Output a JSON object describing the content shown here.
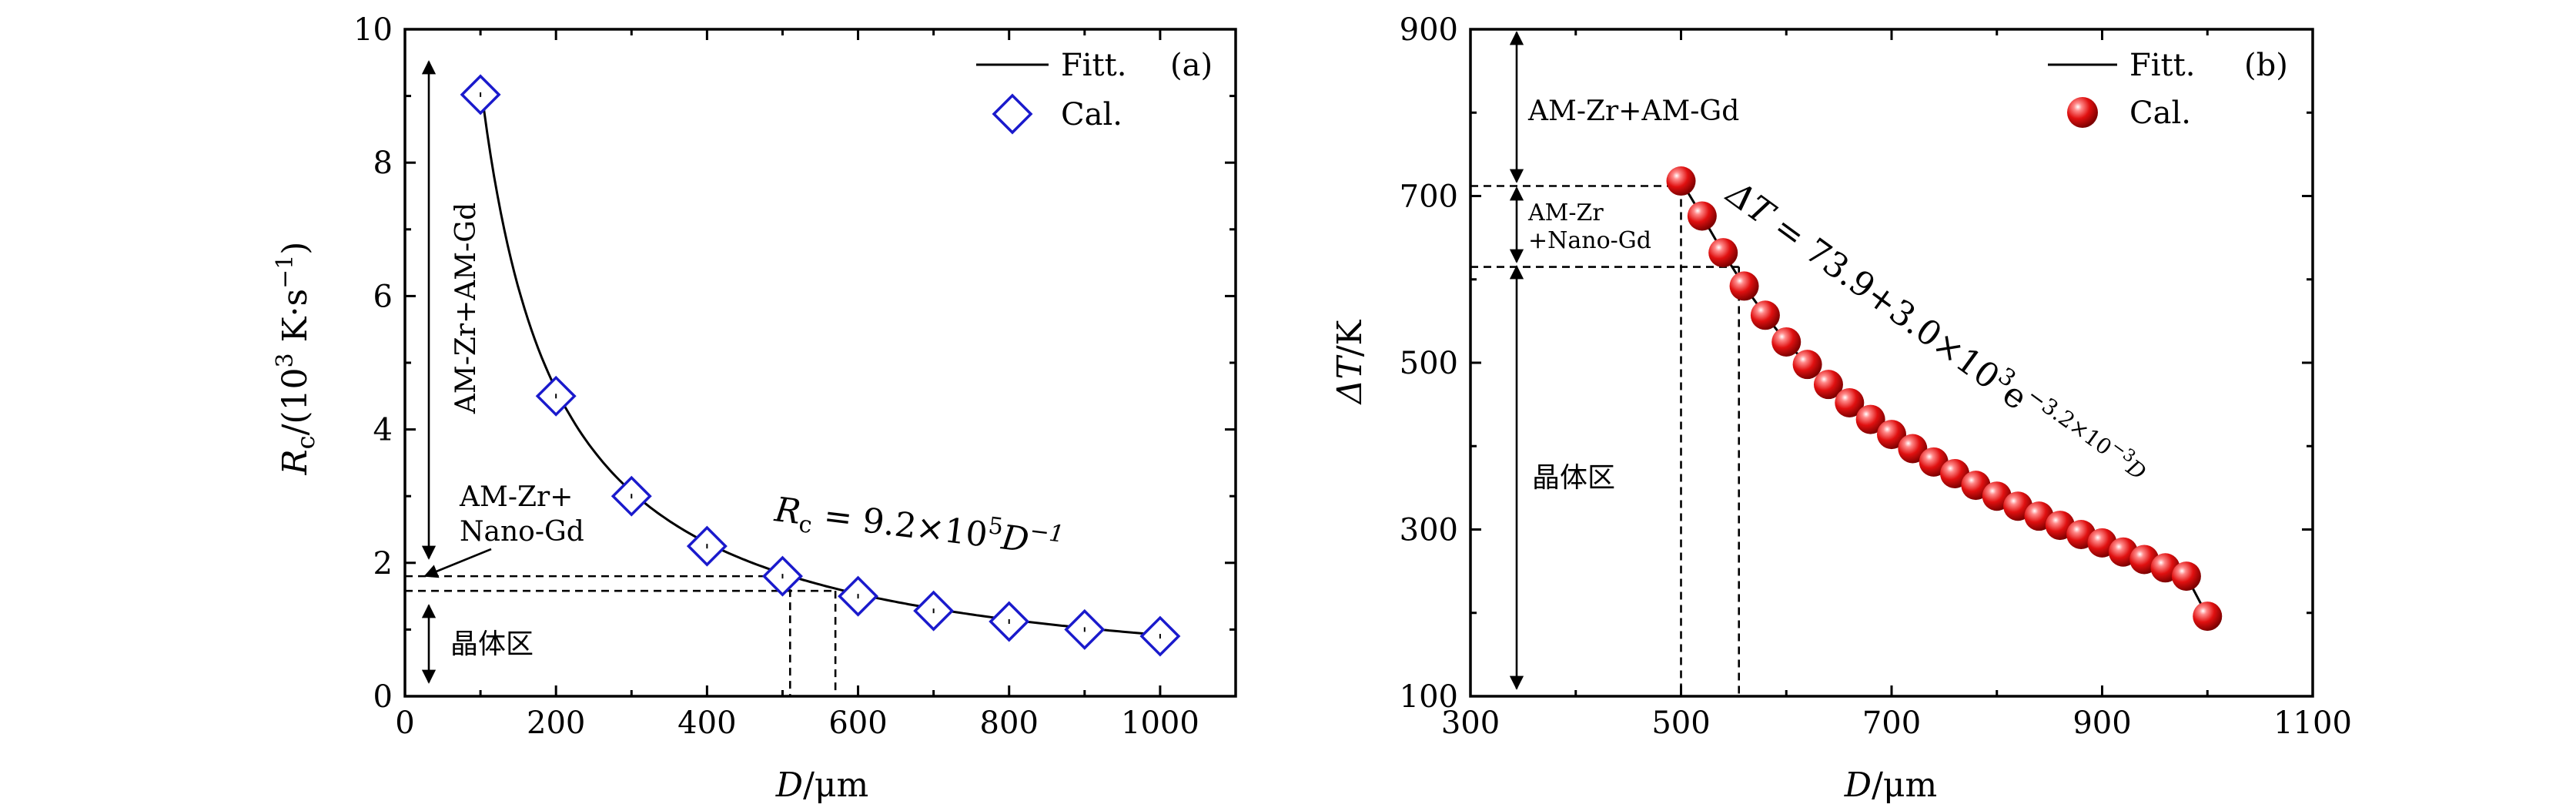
{
  "chart_data": [
    {
      "type": "scatter",
      "panel": "(a)",
      "ylabel_parts": {
        "var": "R",
        "sub": "c",
        "unit_pre": "/(10",
        "unit_sup": "3",
        "unit_mid": " K·s",
        "unit_sup2": "−1",
        "unit_post": ")"
      },
      "xlabel_parts": {
        "var": "D",
        "unit": "/μm"
      },
      "xlim": [
        0,
        1100
      ],
      "ylim": [
        0,
        10
      ],
      "xticks": [
        0,
        200,
        400,
        600,
        800,
        1000
      ],
      "yticks": [
        0,
        2,
        4,
        6,
        8,
        10
      ],
      "xtick_labels": [
        "0",
        "200",
        "400",
        "600",
        "800",
        "1000"
      ],
      "ytick_labels": [
        "0",
        "2",
        "4",
        "6",
        "8",
        "10"
      ],
      "series": [
        {
          "name": "Cal.",
          "marker": "diamond",
          "color": "#1a1acc",
          "x": [
            100,
            200,
            300,
            400,
            500,
            600,
            700,
            800,
            900,
            1000
          ],
          "y": [
            9.02,
            4.5,
            3.0,
            2.25,
            1.8,
            1.5,
            1.28,
            1.12,
            1.0,
            0.9
          ]
        },
        {
          "name": "Fitt.",
          "line": "solid",
          "color": "#000000",
          "equation_coeff": 920,
          "equation_exp": -1,
          "x_range": [
            100,
            1000
          ]
        }
      ],
      "thresholds": {
        "y_upper": 1.8,
        "y_lower": 1.58,
        "x_upper": 510,
        "x_lower": 570
      },
      "legend": {
        "placement": "top-right",
        "entries": [
          "Fitt.",
          "Cal."
        ]
      },
      "equation": {
        "lhs_var": "R",
        "lhs_sub": "c",
        "text": " = 9.2×10",
        "sup": "5",
        "rest": "D",
        "rest_sup": "−1"
      },
      "annotations": {
        "top_region": "AM-Zr+AM-Gd",
        "mid_region_line1": "AM-Zr+",
        "mid_region_line2": "Nano-Gd",
        "bottom_region": "晶体区"
      }
    },
    {
      "type": "scatter",
      "panel": "(b)",
      "ylabel_parts": {
        "var": "ΔT",
        "unit": "/K"
      },
      "xlabel_parts": {
        "var": "D",
        "unit": "/μm"
      },
      "xlim": [
        300,
        1100
      ],
      "ylim": [
        100,
        900
      ],
      "xticks": [
        300,
        500,
        700,
        900,
        1100
      ],
      "yticks": [
        100,
        300,
        500,
        700,
        900
      ],
      "xtick_labels": [
        "300",
        "500",
        "700",
        "900",
        "1100"
      ],
      "ytick_labels": [
        "100",
        "300",
        "500",
        "700",
        "900"
      ],
      "series": [
        {
          "name": "Cal.",
          "marker": "sphere",
          "color": "#e01010",
          "x": [
            500,
            520,
            540,
            560,
            580,
            600,
            620,
            640,
            660,
            680,
            700,
            720,
            740,
            760,
            780,
            800,
            820,
            840,
            860,
            880,
            900,
            920,
            940,
            960,
            980,
            1000
          ],
          "y": [
            718,
            676,
            632,
            592,
            557,
            525,
            498,
            474,
            452,
            432,
            414,
            397,
            381,
            367,
            353,
            340,
            328,
            316,
            305,
            294,
            284,
            273,
            264,
            254,
            244,
            196
          ]
        },
        {
          "name": "Fitt.",
          "line": "solid",
          "color": "#000000",
          "x_range": [
            500,
            1000
          ]
        }
      ],
      "thresholds": {
        "y_upper": 712,
        "y_lower": 615,
        "x_upper": 500,
        "x_lower": 555
      },
      "legend": {
        "placement": "top-right",
        "entries": [
          "Fitt.",
          "Cal."
        ]
      },
      "equation": {
        "lhs": "ΔT",
        "text": " = 73.9+3.0×10",
        "sup": "3",
        "e": "e",
        "exp": "−3.2×10",
        "exp_sup": "−3",
        "exp_var": "D"
      },
      "annotations": {
        "top_region": "AM-Zr+AM-Gd",
        "mid_region_line1": "AM-Zr",
        "mid_region_line2": "+Nano-Gd",
        "bottom_region": "晶体区"
      }
    }
  ]
}
